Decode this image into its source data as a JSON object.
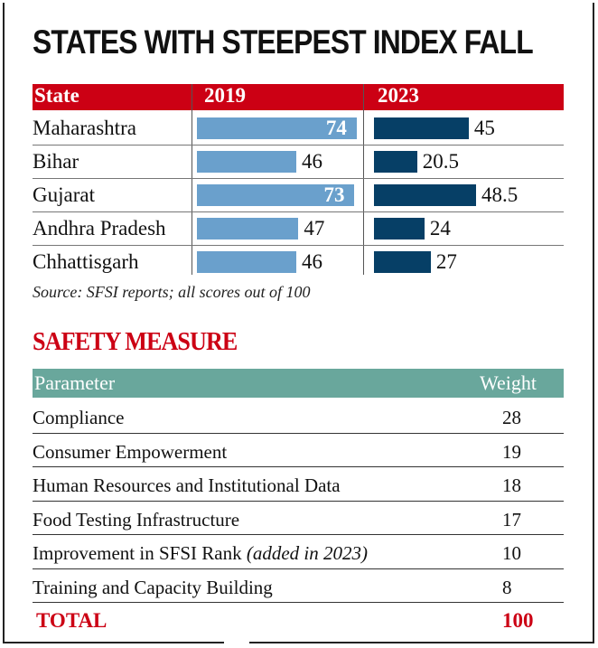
{
  "title": "STATES WITH STEEPEST INDEX FALL",
  "chart_data": {
    "type": "bar",
    "title": "STATES WITH STEEPEST INDEX FALL",
    "columns": [
      "State",
      "2019",
      "2023"
    ],
    "categories": [
      "Maharashtra",
      "Bihar",
      "Gujarat",
      "Andhra Pradesh",
      "Chhattisgarh"
    ],
    "series": [
      {
        "name": "2019",
        "values": [
          74,
          46,
          73,
          47,
          46
        ],
        "labels": [
          "74",
          "46",
          "73",
          "47",
          "46"
        ],
        "color": "#6aa0cc"
      },
      {
        "name": "2023",
        "values": [
          45,
          20.5,
          48.5,
          24,
          27
        ],
        "labels": [
          "45",
          "20.5",
          "48.5",
          "24",
          "27"
        ],
        "color": "#063f66"
      }
    ],
    "ylim": [
      0,
      100
    ],
    "source": "Source: SFSI reports; all scores out of 100"
  },
  "colors": {
    "header_red": "#cc0014",
    "header_teal": "#69a79c"
  },
  "safety": {
    "title": "SAFETY MEASURE",
    "headers": [
      "Parameter",
      "Weight"
    ],
    "rows": [
      {
        "name": "Compliance",
        "note": "",
        "weight": "28"
      },
      {
        "name": "Consumer Empowerment",
        "note": "",
        "weight": "19"
      },
      {
        "name": "Human Resources and Institutional Data",
        "note": "",
        "weight": "18"
      },
      {
        "name": "Food Testing Infrastructure",
        "note": "",
        "weight": "17"
      },
      {
        "name": "Improvement in SFSI Rank ",
        "note": "(added in 2023)",
        "weight": "10"
      },
      {
        "name": "Training and Capacity Building",
        "note": "",
        "weight": "8"
      }
    ],
    "total_label": "TOTAL",
    "total_value": "100"
  }
}
